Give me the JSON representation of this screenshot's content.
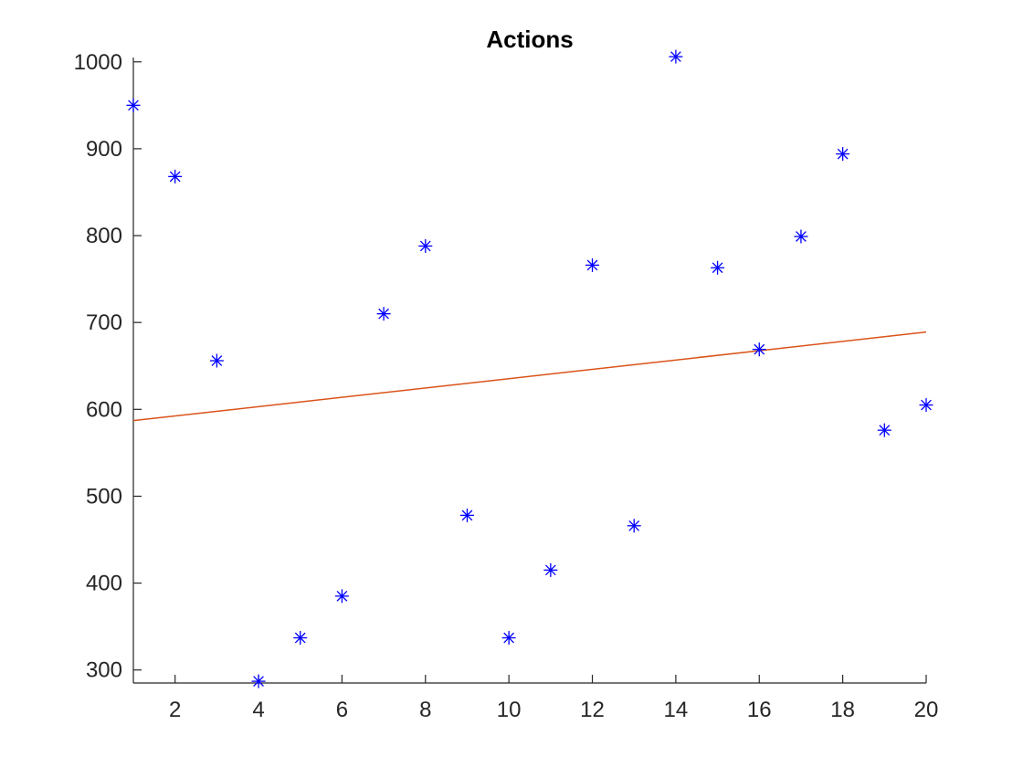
{
  "chart_data": {
    "type": "scatter",
    "title": "Actions",
    "xlabel": "",
    "ylabel": "",
    "xlim": [
      1,
      20
    ],
    "ylim": [
      285,
      1005
    ],
    "xticks": [
      2,
      4,
      6,
      8,
      10,
      12,
      14,
      16,
      18,
      20
    ],
    "yticks": [
      300,
      400,
      500,
      600,
      700,
      800,
      900,
      1000
    ],
    "grid": false,
    "series": [
      {
        "marker": "asterisk",
        "color": "#0000ff",
        "x": [
          1,
          2,
          3,
          4,
          5,
          6,
          7,
          8,
          9,
          10,
          11,
          12,
          13,
          14,
          15,
          16,
          17,
          18,
          19,
          20
        ],
        "y": [
          950,
          868,
          656,
          287,
          337,
          385,
          710,
          788,
          478,
          337,
          415,
          766,
          466,
          1006,
          763,
          669,
          799,
          894,
          576,
          605
        ]
      }
    ],
    "trendline": {
      "type": "line",
      "color": "#d95319",
      "x": [
        1,
        20
      ],
      "y": [
        587,
        689
      ]
    }
  }
}
